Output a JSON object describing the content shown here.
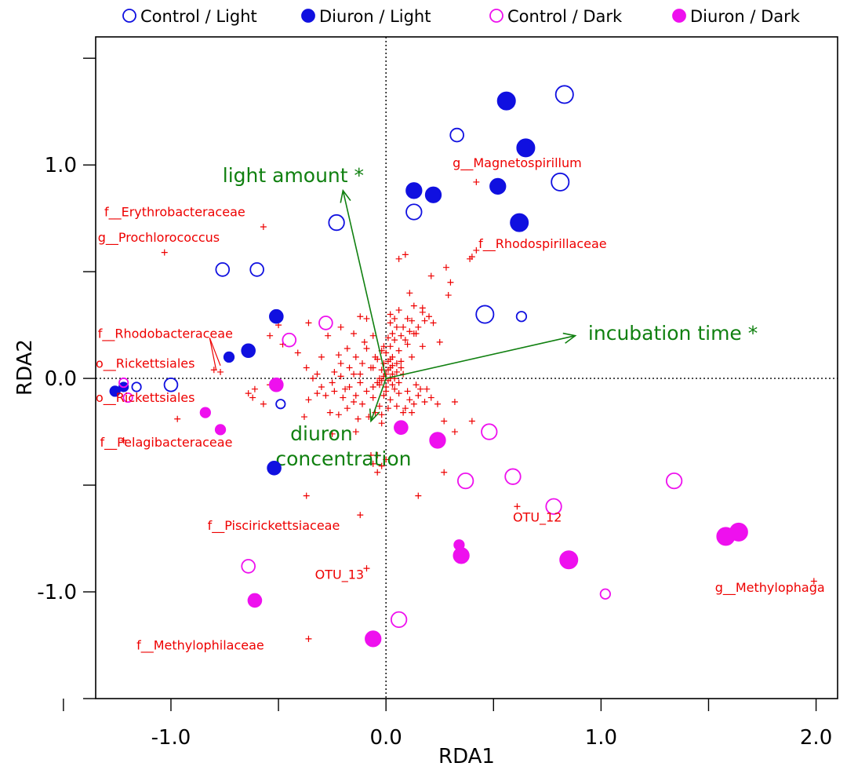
{
  "chart_data": {
    "type": "scatter",
    "xlabel": "RDA1",
    "ylabel": "RDA2",
    "xlim": [
      -1.35,
      2.1
    ],
    "ylim": [
      -1.5,
      1.6
    ],
    "x_ticks": [
      -1.0,
      0.0,
      1.0,
      2.0
    ],
    "x_tick_labels": [
      "-1.0",
      "0.0",
      "1.0",
      "2.0"
    ],
    "x_minor_ticks": [
      -1.5,
      -0.5,
      0.5,
      1.5
    ],
    "y_ticks": [
      -1.0,
      0.0,
      1.0
    ],
    "y_tick_labels": [
      "-1.0",
      "0.0",
      "1.0"
    ],
    "y_minor_ticks": [
      -1.5,
      -0.5,
      0.5,
      1.5
    ],
    "reference_lines": {
      "x": 0,
      "y": 0,
      "style": "dotted"
    },
    "grid": false,
    "legend": {
      "placement": "top",
      "entries": [
        {
          "label": "Control / Light",
          "color": "#1010e0",
          "filled": false
        },
        {
          "label": "Diuron / Light",
          "color": "#1010e0",
          "filled": true
        },
        {
          "label": "Control / Dark",
          "color": "#ee10ee",
          "filled": false
        },
        {
          "label": "Diuron  / Dark",
          "color": "#ee10ee",
          "filled": true
        }
      ]
    },
    "series": [
      {
        "group": "Control / Light",
        "color": "#1010e0",
        "filled": false,
        "points": [
          {
            "x": 0.83,
            "y": 1.33,
            "size": 3
          },
          {
            "x": 0.33,
            "y": 1.14,
            "size": 2
          },
          {
            "x": 0.81,
            "y": 0.92,
            "size": 3
          },
          {
            "x": 0.13,
            "y": 0.78,
            "size": 2.5
          },
          {
            "x": -0.23,
            "y": 0.73,
            "size": 2.5
          },
          {
            "x": -0.76,
            "y": 0.51,
            "size": 2
          },
          {
            "x": -0.6,
            "y": 0.51,
            "size": 2
          },
          {
            "x": 0.46,
            "y": 0.3,
            "size": 3
          },
          {
            "x": 0.63,
            "y": 0.29,
            "size": 1.2
          },
          {
            "x": -1.0,
            "y": -0.03,
            "size": 2
          },
          {
            "x": -1.16,
            "y": -0.04,
            "size": 1
          },
          {
            "x": -0.49,
            "y": -0.12,
            "size": 1
          }
        ]
      },
      {
        "group": "Diuron / Light",
        "color": "#1010e0",
        "filled": true,
        "points": [
          {
            "x": 0.56,
            "y": 1.3,
            "size": 3
          },
          {
            "x": 0.65,
            "y": 1.08,
            "size": 3
          },
          {
            "x": 0.13,
            "y": 0.88,
            "size": 2.5
          },
          {
            "x": 0.22,
            "y": 0.86,
            "size": 2.5
          },
          {
            "x": 0.52,
            "y": 0.9,
            "size": 2.5
          },
          {
            "x": 0.62,
            "y": 0.73,
            "size": 3
          },
          {
            "x": -0.51,
            "y": 0.29,
            "size": 2
          },
          {
            "x": -0.64,
            "y": 0.13,
            "size": 2
          },
          {
            "x": -0.73,
            "y": 0.1,
            "size": 1.2
          },
          {
            "x": -1.22,
            "y": -0.04,
            "size": 1
          },
          {
            "x": -1.26,
            "y": -0.06,
            "size": 1.2
          },
          {
            "x": -0.52,
            "y": -0.42,
            "size": 2
          }
        ]
      },
      {
        "group": "Control / Dark",
        "color": "#ee10ee",
        "filled": false,
        "points": [
          {
            "x": -0.28,
            "y": 0.26,
            "size": 2
          },
          {
            "x": -0.45,
            "y": 0.18,
            "size": 2
          },
          {
            "x": -1.22,
            "y": -0.02,
            "size": 1
          },
          {
            "x": -1.2,
            "y": -0.09,
            "size": 1
          },
          {
            "x": 0.48,
            "y": -0.25,
            "size": 2.5
          },
          {
            "x": 0.37,
            "y": -0.48,
            "size": 2.5
          },
          {
            "x": 0.59,
            "y": -0.46,
            "size": 2.5
          },
          {
            "x": 1.34,
            "y": -0.48,
            "size": 2.5
          },
          {
            "x": 0.78,
            "y": -0.6,
            "size": 2.5
          },
          {
            "x": -0.64,
            "y": -0.88,
            "size": 2
          },
          {
            "x": 1.02,
            "y": -1.01,
            "size": 1.2
          },
          {
            "x": 0.06,
            "y": -1.13,
            "size": 2.5
          }
        ]
      },
      {
        "group": "Diuron  / Dark",
        "color": "#ee10ee",
        "filled": true,
        "points": [
          {
            "x": -0.51,
            "y": -0.03,
            "size": 2
          },
          {
            "x": -0.84,
            "y": -0.16,
            "size": 1.2
          },
          {
            "x": -0.77,
            "y": -0.24,
            "size": 1.2
          },
          {
            "x": 0.07,
            "y": -0.23,
            "size": 2
          },
          {
            "x": 0.24,
            "y": -0.29,
            "size": 2.5
          },
          {
            "x": 1.58,
            "y": -0.74,
            "size": 3
          },
          {
            "x": 1.64,
            "y": -0.72,
            "size": 3
          },
          {
            "x": 0.34,
            "y": -0.78,
            "size": 1.2
          },
          {
            "x": 0.35,
            "y": -0.83,
            "size": 2.5
          },
          {
            "x": 0.85,
            "y": -0.85,
            "size": 3
          },
          {
            "x": -0.61,
            "y": -1.04,
            "size": 2
          },
          {
            "x": -0.06,
            "y": -1.22,
            "size": 2.5
          }
        ]
      }
    ],
    "species_points": {
      "marker": "+",
      "color": "#ee0000",
      "points": [
        [
          -0.57,
          0.71
        ],
        [
          -1.03,
          0.59
        ],
        [
          0.42,
          0.92
        ],
        [
          0.42,
          0.6
        ],
        [
          0.4,
          0.57
        ],
        [
          0.39,
          0.56
        ],
        [
          0.09,
          0.58
        ],
        [
          0.06,
          0.56
        ],
        [
          0.28,
          0.52
        ],
        [
          0.21,
          0.48
        ],
        [
          0.3,
          0.45
        ],
        [
          0.29,
          0.39
        ],
        [
          0.11,
          0.4
        ],
        [
          0.13,
          0.34
        ],
        [
          0.06,
          0.32
        ],
        [
          0.17,
          0.31
        ],
        [
          0.2,
          0.29
        ],
        [
          0.18,
          0.27
        ],
        [
          0.22,
          0.26
        ],
        [
          0.15,
          0.24
        ],
        [
          0.1,
          0.28
        ],
        [
          0.02,
          0.3
        ],
        [
          -0.12,
          0.29
        ],
        [
          -0.09,
          0.28
        ],
        [
          -0.36,
          0.26
        ],
        [
          -0.21,
          0.24
        ],
        [
          -0.15,
          0.21
        ],
        [
          -0.27,
          0.2
        ],
        [
          -0.1,
          0.17
        ],
        [
          -0.09,
          0.14
        ],
        [
          -0.18,
          0.14
        ],
        [
          -0.22,
          0.11
        ],
        [
          -0.3,
          0.1
        ],
        [
          -0.41,
          0.12
        ],
        [
          -0.48,
          0.16
        ],
        [
          -0.54,
          0.2
        ],
        [
          -0.32,
          0.02
        ],
        [
          -0.37,
          0.05
        ],
        [
          -0.24,
          0.03
        ],
        [
          -0.21,
          0.01
        ],
        [
          -0.12,
          0.02
        ],
        [
          -0.07,
          0.05
        ],
        [
          -0.04,
          0.09
        ],
        [
          -0.02,
          0.13
        ],
        [
          0.02,
          0.15
        ],
        [
          0.04,
          0.18
        ],
        [
          0.07,
          0.2
        ],
        [
          0.11,
          0.22
        ],
        [
          0.13,
          0.21
        ],
        [
          0.05,
          0.24
        ],
        [
          0.02,
          0.26
        ],
        [
          0.03,
          0.21
        ],
        [
          0.0,
          0.12
        ],
        [
          -0.01,
          0.07
        ],
        [
          0.01,
          0.04
        ],
        [
          0.03,
          0.06
        ],
        [
          0.05,
          0.03
        ],
        [
          0.08,
          0.02
        ],
        [
          0.02,
          0.0
        ],
        [
          -0.02,
          -0.01
        ],
        [
          -0.03,
          -0.03
        ],
        [
          0.0,
          -0.04
        ],
        [
          0.04,
          -0.05
        ],
        [
          0.06,
          -0.02
        ],
        [
          0.1,
          -0.06
        ],
        [
          0.15,
          -0.08
        ],
        [
          0.09,
          -0.14
        ],
        [
          0.08,
          -0.16
        ],
        [
          0.12,
          -0.16
        ],
        [
          0.18,
          -0.11
        ],
        [
          0.24,
          -0.12
        ],
        [
          0.27,
          -0.2
        ],
        [
          0.32,
          -0.11
        ],
        [
          0.32,
          -0.25
        ],
        [
          0.4,
          -0.2
        ],
        [
          0.27,
          -0.44
        ],
        [
          -0.08,
          -0.18
        ],
        [
          -0.11,
          -0.12
        ],
        [
          -0.14,
          -0.08
        ],
        [
          -0.17,
          -0.04
        ],
        [
          -0.2,
          -0.09
        ],
        [
          -0.24,
          -0.06
        ],
        [
          -0.28,
          -0.08
        ],
        [
          -0.32,
          -0.07
        ],
        [
          -0.36,
          -0.1
        ],
        [
          -0.38,
          -0.18
        ],
        [
          -0.26,
          -0.16
        ],
        [
          -0.22,
          -0.17
        ],
        [
          -0.18,
          -0.14
        ],
        [
          -0.15,
          -0.11
        ],
        [
          -0.06,
          -0.09
        ],
        [
          -0.03,
          -0.13
        ],
        [
          0.02,
          -0.1
        ],
        [
          0.05,
          -0.13
        ],
        [
          -0.02,
          -0.21
        ],
        [
          -0.04,
          -0.36
        ],
        [
          -0.07,
          -0.36
        ],
        [
          -0.06,
          -0.4
        ],
        [
          -0.04,
          -0.44
        ],
        [
          -0.02,
          -0.41
        ],
        [
          0.0,
          -0.38
        ],
        [
          -0.54,
          -0.03
        ],
        [
          -0.61,
          -0.05
        ],
        [
          -0.62,
          -0.09
        ],
        [
          -0.64,
          -0.07
        ],
        [
          -0.57,
          -0.12
        ],
        [
          -0.77,
          0.03
        ],
        [
          -0.8,
          0.04
        ],
        [
          -0.97,
          -0.19
        ],
        [
          -0.37,
          -0.55
        ],
        [
          -0.25,
          -0.26
        ],
        [
          -0.14,
          -0.25
        ],
        [
          -0.12,
          -0.64
        ],
        [
          -0.09,
          -0.89
        ],
        [
          -0.5,
          0.25
        ],
        [
          0.15,
          -0.55
        ],
        [
          0.61,
          -0.6
        ],
        [
          -0.14,
          0.1
        ],
        [
          -0.06,
          0.05
        ],
        [
          0.0,
          0.02
        ],
        [
          0.01,
          -0.01
        ],
        [
          0.03,
          0.02
        ],
        [
          -0.01,
          0.01
        ],
        [
          0.02,
          0.05
        ],
        [
          -0.03,
          0.0
        ],
        [
          0.04,
          0.0
        ],
        [
          0.0,
          -0.06
        ],
        [
          -0.36,
          -1.22
        ],
        [
          1.99,
          -0.95
        ],
        [
          -1.22,
          -0.29
        ],
        [
          0.17,
          0.33
        ],
        [
          0.03,
          0.1
        ],
        [
          -0.05,
          0.1
        ],
        [
          0.07,
          0.08
        ],
        [
          0.12,
          0.1
        ],
        [
          0.17,
          0.15
        ],
        [
          0.08,
          0.24
        ],
        [
          0.12,
          0.27
        ],
        [
          0.14,
          0.21
        ],
        [
          0.09,
          0.18
        ],
        [
          -0.11,
          0.07
        ],
        [
          0.25,
          0.17
        ],
        [
          0.19,
          -0.05
        ],
        [
          0.14,
          -0.03
        ],
        [
          0.11,
          -0.1
        ],
        [
          -0.05,
          -0.16
        ],
        [
          -0.13,
          -0.19
        ],
        [
          -0.19,
          -0.05
        ],
        [
          -0.25,
          -0.02
        ],
        [
          -0.3,
          -0.04
        ],
        [
          -0.34,
          0.0
        ],
        [
          -0.01,
          0.15
        ],
        [
          0.01,
          0.19
        ],
        [
          -0.06,
          0.2
        ],
        [
          0.04,
          0.28
        ],
        [
          0.06,
          0.13
        ],
        [
          0.1,
          0.16
        ],
        [
          0.16,
          -0.05
        ],
        [
          0.13,
          -0.12
        ],
        [
          0.21,
          -0.09
        ],
        [
          0.01,
          -0.14
        ],
        [
          -0.02,
          -0.17
        ],
        [
          -0.09,
          -0.06
        ],
        [
          -0.12,
          -0.02
        ],
        [
          -0.15,
          0.02
        ],
        [
          -0.17,
          0.05
        ],
        [
          -0.21,
          0.07
        ],
        [
          0.01,
          0.08
        ],
        [
          0.02,
          0.09
        ],
        [
          -0.02,
          0.04
        ],
        [
          0.05,
          0.07
        ],
        [
          0.07,
          0.05
        ],
        [
          -0.04,
          -0.02
        ],
        [
          -0.06,
          -0.04
        ],
        [
          0.06,
          -0.07
        ],
        [
          -0.01,
          -0.08
        ],
        [
          0.03,
          -0.03
        ]
      ]
    },
    "species_labels": [
      {
        "text": "f__Erythrobacteraceae",
        "x": -1.31,
        "y": 0.76,
        "anchor": "start"
      },
      {
        "text": "g__Prochlorococcus",
        "x": -1.34,
        "y": 0.64,
        "anchor": "start"
      },
      {
        "text": "g__Magnetospirillum",
        "x": 0.31,
        "y": 0.99,
        "anchor": "start"
      },
      {
        "text": "f__Rhodospirillaceae",
        "x": 0.43,
        "y": 0.61,
        "anchor": "start"
      },
      {
        "text": "f__Rhodobacteraceae",
        "x": -1.34,
        "y": 0.19,
        "anchor": "start"
      },
      {
        "text": "o__Rickettsiales",
        "x": -1.35,
        "y": 0.05,
        "anchor": "start"
      },
      {
        "text": "o__Rickettsiales",
        "x": -1.35,
        "y": -0.11,
        "anchor": "start"
      },
      {
        "text": "f__Pelagibacteraceae",
        "x": -1.33,
        "y": -0.32,
        "anchor": "start"
      },
      {
        "text": "f__Piscirickettsiaceae",
        "x": -0.83,
        "y": -0.71,
        "anchor": "start"
      },
      {
        "text": "OTU_12",
        "x": 0.59,
        "y": -0.67,
        "anchor": "start"
      },
      {
        "text": "OTU_13",
        "x": -0.33,
        "y": -0.94,
        "anchor": "start"
      },
      {
        "text": "g__Methylophaga",
        "x": 1.53,
        "y": -1.0,
        "anchor": "start"
      },
      {
        "text": "f__Methylophilaceae",
        "x": -1.16,
        "y": -1.27,
        "anchor": "start"
      }
    ],
    "leader_lines": [
      {
        "x1": -0.82,
        "y1": 0.19,
        "x2": -0.77,
        "y2": 0.06
      },
      {
        "x1": -0.82,
        "y1": 0.19,
        "x2": -0.79,
        "y2": 0.04
      }
    ],
    "vectors": {
      "color": "#108010",
      "items": [
        {
          "label": "light amount *",
          "x": -0.2,
          "y": 0.88,
          "label_x": -0.76,
          "label_y": 0.92,
          "label_lines": [
            "light amount *"
          ]
        },
        {
          "label": "incubation time *",
          "x": 0.88,
          "y": 0.2,
          "label_x": 0.94,
          "label_y": 0.18,
          "label_lines": [
            "incubation time *"
          ]
        },
        {
          "label": "diuron concentration",
          "x": -0.07,
          "y": -0.2,
          "label_x": -0.3,
          "label_y": -0.29,
          "label_lines": [
            "diuron",
            "concentration"
          ],
          "line_anchor": "middle"
        }
      ]
    }
  }
}
